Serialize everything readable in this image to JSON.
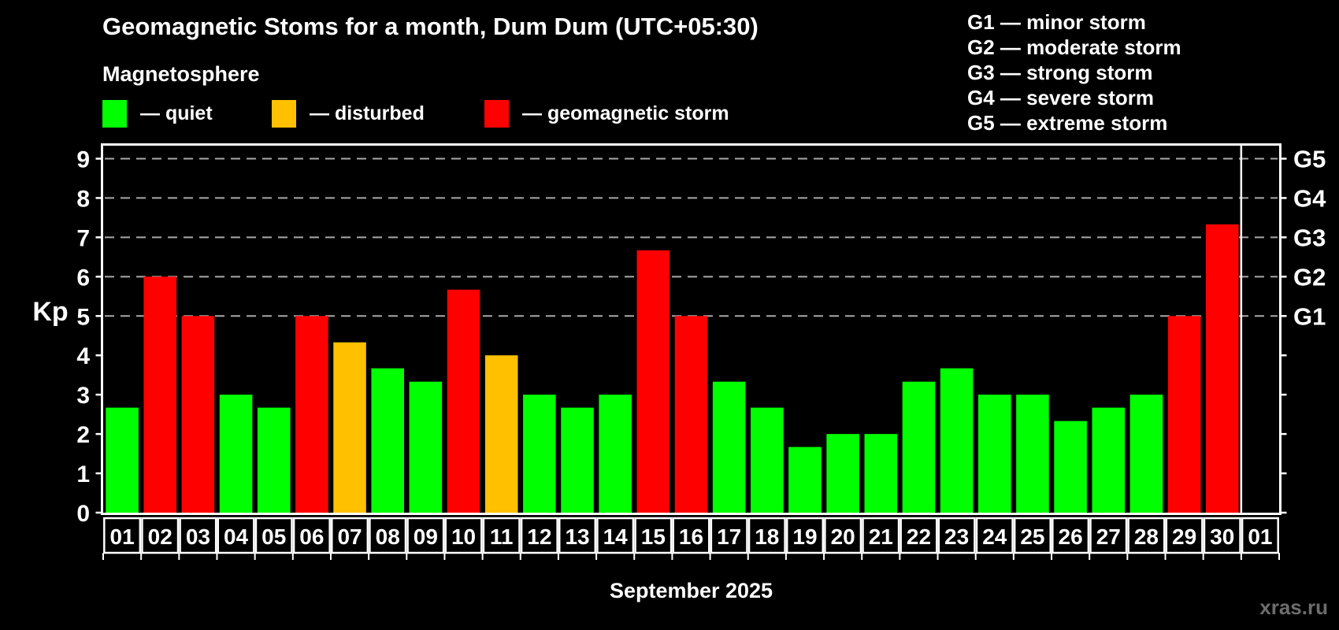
{
  "header": {
    "title": "Geomagnetic Stoms for a month, Dum Dum (UTC+05:30)",
    "subtitle": "Magnetosphere",
    "legend": [
      {
        "key": "quiet",
        "label": "— quiet"
      },
      {
        "key": "disturbed",
        "label": "— disturbed"
      },
      {
        "key": "storm",
        "label": "— geomagnetic storm"
      }
    ],
    "g_legend": [
      "G1 — minor storm",
      "G2 — moderate storm",
      "G3 — strong storm",
      "G4 — severe storm",
      "G5 — extreme storm"
    ]
  },
  "chart_data": {
    "type": "bar",
    "title": "Geomagnetic Stoms for a month, Dum Dum (UTC+05:30)",
    "xlabel": "September 2025",
    "ylabel": "Kp",
    "ylim": [
      0,
      9.33
    ],
    "yticks": [
      0,
      1,
      2,
      3,
      4,
      5,
      6,
      7,
      8,
      9
    ],
    "gridlines_at": [
      5,
      6,
      7,
      8,
      9
    ],
    "grid": "dashed",
    "legend_position": "top",
    "right_axis": [
      {
        "kp": 5,
        "label": "G1"
      },
      {
        "kp": 6,
        "label": "G2"
      },
      {
        "kp": 7,
        "label": "G3"
      },
      {
        "kp": 8,
        "label": "G4"
      },
      {
        "kp": 9,
        "label": "G5"
      }
    ],
    "categories": [
      "01",
      "02",
      "03",
      "04",
      "05",
      "06",
      "07",
      "08",
      "09",
      "10",
      "11",
      "12",
      "13",
      "14",
      "15",
      "16",
      "17",
      "18",
      "19",
      "20",
      "21",
      "22",
      "23",
      "24",
      "25",
      "26",
      "27",
      "28",
      "29",
      "30",
      "01"
    ],
    "values": [
      2.67,
      6,
      5,
      3,
      2.67,
      5,
      4.33,
      3.67,
      3.33,
      5.67,
      4,
      3,
      2.67,
      3,
      6.67,
      5,
      3.33,
      2.67,
      1.67,
      2,
      2,
      3.33,
      3.67,
      3,
      3,
      2.33,
      2.67,
      3,
      5,
      7.33,
      null
    ],
    "statuses": [
      "quiet",
      "storm",
      "storm",
      "quiet",
      "quiet",
      "storm",
      "disturbed",
      "quiet",
      "quiet",
      "storm",
      "disturbed",
      "quiet",
      "quiet",
      "quiet",
      "storm",
      "storm",
      "quiet",
      "quiet",
      "quiet",
      "quiet",
      "quiet",
      "quiet",
      "quiet",
      "quiet",
      "quiet",
      "quiet",
      "quiet",
      "quiet",
      "storm",
      "storm",
      null
    ],
    "separator_after_index": 29
  },
  "footer": {
    "month_label": "September 2025",
    "watermark": "xras.ru"
  },
  "colors": {
    "quiet": "#00ff00",
    "disturbed": "#ffc000",
    "storm": "#ff0000",
    "background": "#000000",
    "grid": "#a9a9a9",
    "axis": "#ffffff",
    "watermark": "#6d6d6d"
  }
}
